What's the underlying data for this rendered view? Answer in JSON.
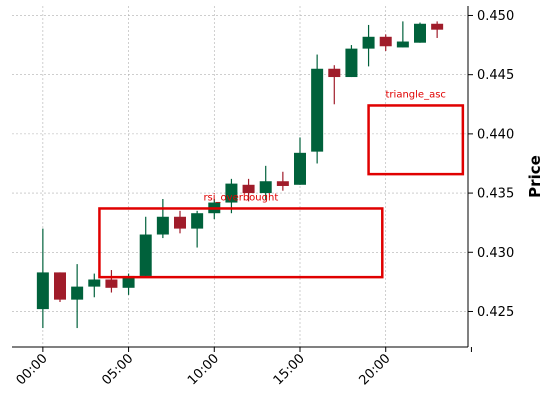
{
  "chart_data": {
    "type": "candlestick",
    "ylabel": "Price",
    "ylim": [
      0.422,
      0.4508
    ],
    "xlim": [
      -1.8,
      24.8
    ],
    "y_ticks": [
      0.425,
      0.43,
      0.435,
      0.44,
      0.445,
      0.45
    ],
    "y_tick_labels": [
      "0.425",
      "0.430",
      "0.435",
      "0.440",
      "0.445",
      "0.450"
    ],
    "x_ticks": [
      0,
      5,
      10,
      15,
      20,
      25
    ],
    "x_tick_labels": [
      "00:00",
      "05:00",
      "10:00",
      "15:00",
      "20:00",
      ""
    ],
    "colors": {
      "up": "#00613b",
      "down": "#a01c2a",
      "annotation": "#e00000"
    },
    "grid": true,
    "candles": [
      {
        "x": 0,
        "open": 0.4252,
        "high": 0.432,
        "low": 0.4236,
        "close": 0.4283
      },
      {
        "x": 1,
        "open": 0.4283,
        "high": 0.4283,
        "low": 0.4258,
        "close": 0.426
      },
      {
        "x": 2,
        "open": 0.426,
        "high": 0.429,
        "low": 0.4236,
        "close": 0.4271
      },
      {
        "x": 3,
        "open": 0.4271,
        "high": 0.4282,
        "low": 0.4262,
        "close": 0.4277
      },
      {
        "x": 4,
        "open": 0.4277,
        "high": 0.4285,
        "low": 0.4266,
        "close": 0.427
      },
      {
        "x": 5,
        "open": 0.427,
        "high": 0.4282,
        "low": 0.4264,
        "close": 0.428
      },
      {
        "x": 6,
        "open": 0.428,
        "high": 0.433,
        "low": 0.428,
        "close": 0.4315
      },
      {
        "x": 7,
        "open": 0.4315,
        "high": 0.4345,
        "low": 0.4312,
        "close": 0.433
      },
      {
        "x": 8,
        "open": 0.433,
        "high": 0.4335,
        "low": 0.4316,
        "close": 0.432
      },
      {
        "x": 9,
        "open": 0.432,
        "high": 0.4335,
        "low": 0.4304,
        "close": 0.4333
      },
      {
        "x": 10,
        "open": 0.4333,
        "high": 0.4345,
        "low": 0.4328,
        "close": 0.4342
      },
      {
        "x": 11,
        "open": 0.4342,
        "high": 0.4362,
        "low": 0.4333,
        "close": 0.4358
      },
      {
        "x": 12,
        "open": 0.4357,
        "high": 0.4362,
        "low": 0.4343,
        "close": 0.435
      },
      {
        "x": 13,
        "open": 0.435,
        "high": 0.4373,
        "low": 0.4344,
        "close": 0.436
      },
      {
        "x": 14,
        "open": 0.436,
        "high": 0.4368,
        "low": 0.4352,
        "close": 0.4356
      },
      {
        "x": 15,
        "open": 0.4357,
        "high": 0.4397,
        "low": 0.4357,
        "close": 0.4384
      },
      {
        "x": 16,
        "open": 0.4385,
        "high": 0.4467,
        "low": 0.4375,
        "close": 0.4455
      },
      {
        "x": 17,
        "open": 0.4455,
        "high": 0.4458,
        "low": 0.4425,
        "close": 0.4448
      },
      {
        "x": 18,
        "open": 0.4448,
        "high": 0.4475,
        "low": 0.4448,
        "close": 0.4472
      },
      {
        "x": 19,
        "open": 0.4472,
        "high": 0.4492,
        "low": 0.4457,
        "close": 0.4482
      },
      {
        "x": 20,
        "open": 0.4482,
        "high": 0.4484,
        "low": 0.447,
        "close": 0.4474
      },
      {
        "x": 21,
        "open": 0.4473,
        "high": 0.4495,
        "low": 0.4473,
        "close": 0.4478
      },
      {
        "x": 22,
        "open": 0.4477,
        "high": 0.4494,
        "low": 0.4477,
        "close": 0.4493
      },
      {
        "x": 23,
        "open": 0.4493,
        "high": 0.4495,
        "low": 0.4481,
        "close": 0.4488
      }
    ],
    "annotations": [
      {
        "label": "rsi_overbought",
        "x0": 3.3,
        "x1": 19.8,
        "y0": 0.4279,
        "y1": 0.4337
      },
      {
        "label": "triangle_asc",
        "x0": 19.0,
        "x1": 24.5,
        "y0": 0.4366,
        "y1": 0.4424
      }
    ]
  }
}
